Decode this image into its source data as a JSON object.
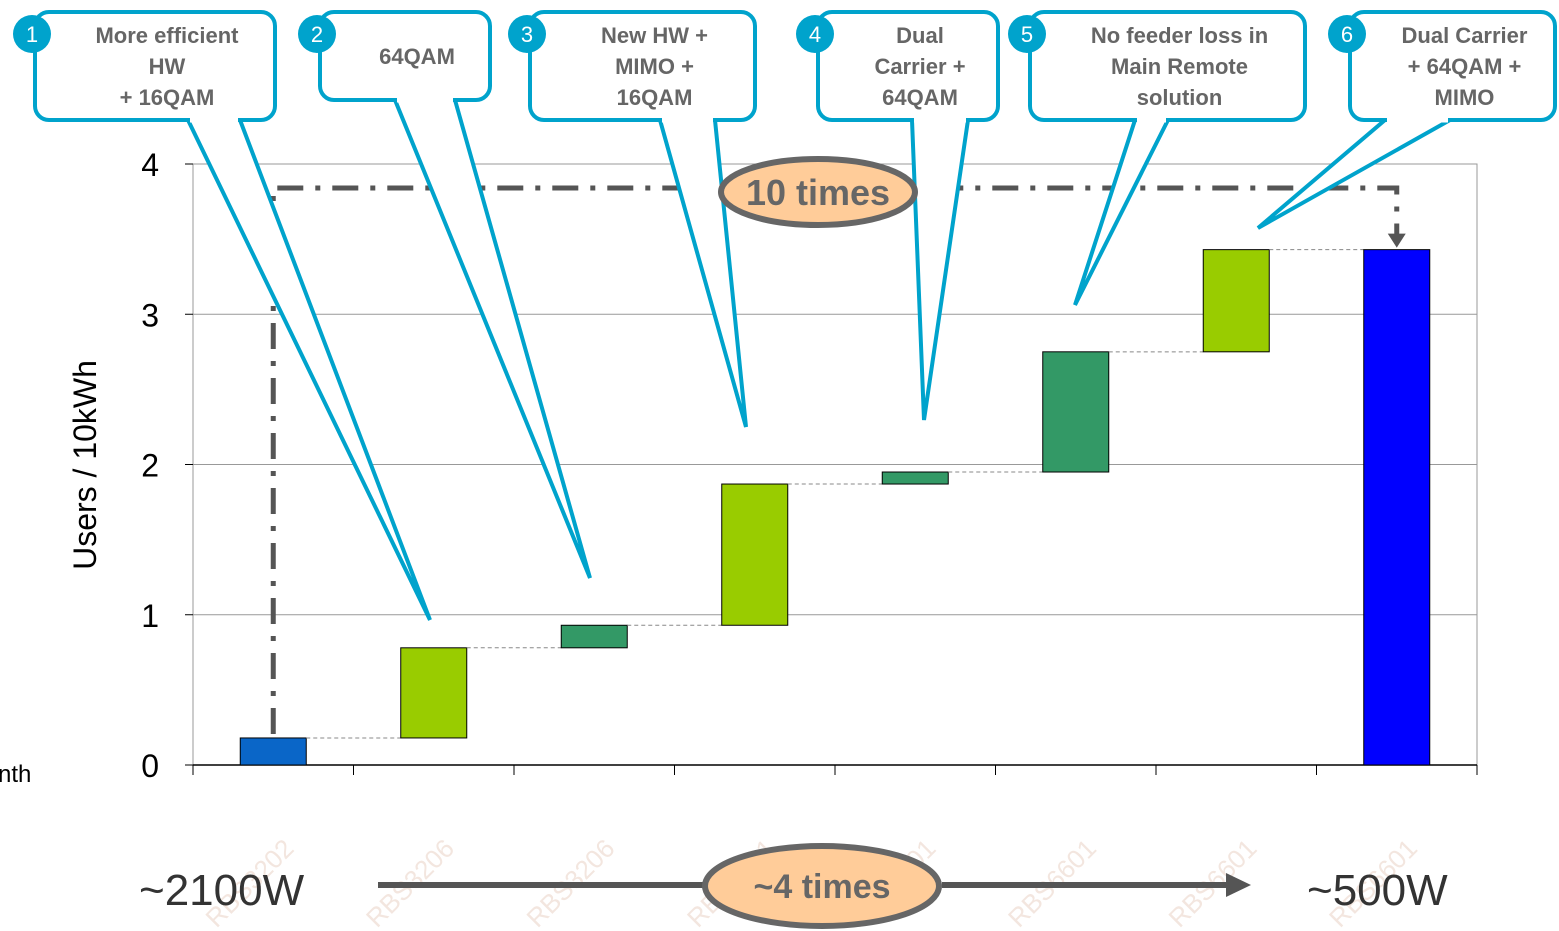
{
  "chart_data": {
    "type": "bar",
    "subtype": "waterfall",
    "ylabel": "Users / 10kWh",
    "ylim": [
      0,
      4
    ],
    "yticks": [
      0,
      1,
      2,
      3,
      4
    ],
    "grid": true,
    "categories": [
      "RBS3202",
      "RBS3206",
      "RBS3206",
      "RBS6201",
      "RBS6201",
      "RBS6601",
      "RBS6601",
      "RBS6601"
    ],
    "bars": [
      {
        "category": "RBS3202",
        "base": 0,
        "top": 0.18,
        "kind": "start"
      },
      {
        "category": "RBS3206",
        "base": 0.18,
        "top": 0.78,
        "kind": "step-light"
      },
      {
        "category": "RBS3206",
        "base": 0.78,
        "top": 0.93,
        "kind": "step-dark"
      },
      {
        "category": "RBS6201",
        "base": 0.93,
        "top": 1.87,
        "kind": "step-light"
      },
      {
        "category": "RBS6201",
        "base": 1.87,
        "top": 1.95,
        "kind": "step-dark"
      },
      {
        "category": "RBS6601",
        "base": 1.95,
        "top": 2.75,
        "kind": "step-dark"
      },
      {
        "category": "RBS6601",
        "base": 2.75,
        "top": 3.43,
        "kind": "step-light"
      },
      {
        "category": "RBS6601",
        "base": 0,
        "top": 3.43,
        "kind": "total"
      }
    ],
    "colors": {
      "start": "#0a66c8",
      "step-light": "#99cc00",
      "step-dark": "#339966",
      "total": "#0000ff",
      "callout": "#00a3cc",
      "oval": "#ffcc99",
      "arrow": "#555555"
    }
  },
  "callouts": [
    {
      "num": "1",
      "lines": [
        "More efficient",
        "HW",
        "+ 16QAM"
      ]
    },
    {
      "num": "2",
      "lines": [
        "64QAM"
      ]
    },
    {
      "num": "3",
      "lines": [
        "New HW +",
        "MIMO +",
        "16QAM"
      ]
    },
    {
      "num": "4",
      "lines": [
        "Dual",
        "Carrier +",
        "64QAM"
      ]
    },
    {
      "num": "5",
      "lines": [
        "No feeder loss in",
        "Main Remote",
        "solution"
      ]
    },
    {
      "num": "6",
      "lines": [
        "Dual Carrier",
        "+ 64QAM +",
        "MIMO"
      ]
    }
  ],
  "annotations": {
    "ten_times": "10 times",
    "four_times": "~4 times",
    "power_left": "~2100W",
    "power_right": "~500W",
    "left_fragment": "nth"
  }
}
